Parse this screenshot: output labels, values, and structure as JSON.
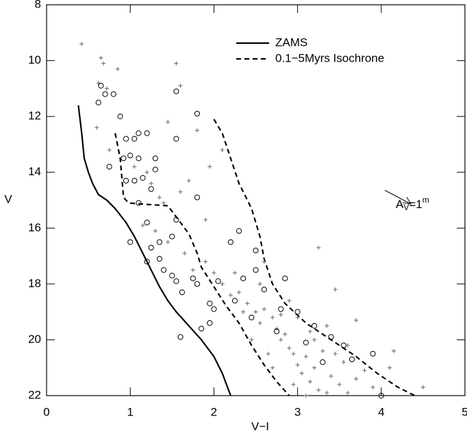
{
  "chart_data": {
    "type": "scatter",
    "x_label": "V−I",
    "y_label": "V",
    "xlim": [
      0,
      5
    ],
    "xticks": [
      0,
      1,
      2,
      3,
      4,
      5
    ],
    "ylim": [
      8,
      22
    ],
    "yticks": [
      8,
      10,
      12,
      14,
      16,
      18,
      20,
      22
    ],
    "y_inverted": true,
    "annotation": {
      "parts": [
        "A",
        "V",
        "=1",
        "m"
      ]
    },
    "series": [
      {
        "name": "ZAMS",
        "kind": "line",
        "dash": false,
        "color": "#000000",
        "x": [
          0.38,
          0.42,
          0.45,
          0.5,
          0.55,
          0.62,
          0.72,
          0.82,
          0.95,
          1.05,
          1.15,
          1.25,
          1.35,
          1.45,
          1.55,
          1.7,
          1.85,
          2.0,
          2.1,
          2.2
        ],
        "y": [
          11.6,
          12.6,
          13.5,
          14.0,
          14.4,
          14.8,
          15.0,
          15.3,
          15.8,
          16.3,
          16.9,
          17.5,
          18.1,
          18.6,
          19.0,
          19.5,
          20.0,
          20.6,
          21.2,
          22.0
        ]
      },
      {
        "name": "0.1−5Myrs Isochrone",
        "kind": "line",
        "dash": true,
        "color": "#000000",
        "x": [
          0.82,
          0.88,
          0.9,
          0.92,
          0.98,
          1.2,
          1.45,
          1.55,
          1.7,
          1.8,
          1.85,
          2.0,
          2.15,
          2.3,
          2.45,
          2.6,
          2.75,
          2.9
        ],
        "y": [
          12.6,
          13.5,
          14.2,
          14.9,
          15.1,
          15.15,
          15.2,
          15.6,
          16.2,
          16.9,
          17.4,
          18.1,
          18.8,
          19.4,
          20.2,
          20.9,
          21.5,
          22.0
        ]
      },
      {
        "kind": "line",
        "dash": true,
        "color": "#000000",
        "x": [
          2.0,
          2.1,
          2.2,
          2.3,
          2.45,
          2.55,
          2.6,
          2.7,
          2.85,
          3.1,
          3.4,
          3.7,
          3.95,
          4.2,
          4.4
        ],
        "y": [
          12.1,
          12.6,
          13.5,
          14.4,
          15.3,
          16.3,
          17.1,
          18.0,
          18.7,
          19.4,
          20.0,
          20.6,
          21.2,
          21.7,
          22.0
        ]
      },
      {
        "kind": "points",
        "marker": "cross",
        "color": "#777777",
        "x": [
          0.42,
          0.65,
          0.68,
          0.85,
          0.62,
          0.72,
          1.55,
          1.6,
          0.6,
          1.45,
          1.8,
          0.75,
          1.05,
          1.2,
          1.25,
          1.35,
          1.4,
          1.6,
          1.7,
          1.95,
          2.1,
          1.9,
          1.15,
          1.3,
          1.45,
          1.65,
          1.75,
          1.9,
          2.0,
          2.1,
          2.2,
          2.3,
          2.4,
          2.5,
          2.55,
          2.6,
          2.7,
          2.75,
          2.8,
          2.85,
          2.9,
          2.95,
          3.0,
          3.05,
          3.1,
          3.15,
          3.2,
          3.25,
          3.3,
          3.35,
          3.4,
          3.5,
          3.55,
          3.6,
          3.7,
          3.8,
          3.9,
          4.1,
          4.15,
          4.5,
          3.25,
          3.45,
          3.7,
          2.6,
          2.9,
          3.15,
          2.45,
          2.65,
          2.7,
          2.95,
          3.1,
          2.35,
          2.8,
          3.2,
          3.45,
          2.55,
          2.25,
          3.0,
          3.35,
          3.6
        ],
        "y": [
          9.4,
          9.9,
          10.1,
          10.3,
          10.8,
          11.0,
          10.1,
          10.9,
          12.4,
          12.2,
          12.5,
          13.2,
          13.8,
          14.0,
          14.4,
          14.9,
          15.1,
          14.7,
          14.3,
          13.8,
          13.2,
          15.7,
          15.9,
          16.1,
          16.5,
          16.9,
          17.5,
          17.2,
          17.6,
          18.0,
          18.4,
          18.3,
          18.7,
          19.0,
          19.4,
          18.9,
          19.2,
          19.6,
          20.0,
          19.8,
          20.3,
          20.5,
          20.9,
          21.2,
          20.6,
          21.5,
          21.0,
          21.8,
          20.4,
          21.9,
          21.3,
          21.6,
          20.8,
          21.9,
          21.4,
          21.1,
          21.7,
          21.0,
          20.4,
          21.7,
          16.7,
          18.2,
          19.3,
          17.2,
          18.6,
          19.7,
          20.0,
          20.5,
          21.0,
          21.6,
          22.0,
          19.0,
          19.1,
          20.0,
          20.5,
          18.0,
          17.6,
          19.2,
          19.5,
          20.2
        ]
      },
      {
        "kind": "points",
        "marker": "circle",
        "color": "#000000",
        "x": [
          0.62,
          0.65,
          0.7,
          0.8,
          0.88,
          0.95,
          1.05,
          1.1,
          1.2,
          1.55,
          1.8,
          1.55,
          0.92,
          1.0,
          1.1,
          1.3,
          0.75,
          0.95,
          1.05,
          1.15,
          1.3,
          1.25,
          1.1,
          1.2,
          1.55,
          1.8,
          1.5,
          1.25,
          1.35,
          1.0,
          1.2,
          1.35,
          1.4,
          1.5,
          1.55,
          1.62,
          1.8,
          1.75,
          1.95,
          2.0,
          1.95,
          1.85,
          1.6,
          2.05,
          2.25,
          2.35,
          2.5,
          2.6,
          2.8,
          3.0,
          3.2,
          2.3,
          2.5,
          2.2,
          2.85,
          3.4,
          3.55,
          3.9,
          3.65,
          4.0,
          3.1,
          2.75,
          2.45,
          3.3
        ],
        "y": [
          11.5,
          10.9,
          11.2,
          11.2,
          12.0,
          12.8,
          12.8,
          12.6,
          12.6,
          12.8,
          11.9,
          11.1,
          13.5,
          13.4,
          13.5,
          13.5,
          13.8,
          14.3,
          14.3,
          14.2,
          13.9,
          14.6,
          15.1,
          15.8,
          15.7,
          14.9,
          16.3,
          16.7,
          16.5,
          16.5,
          17.2,
          17.1,
          17.5,
          17.7,
          17.9,
          18.3,
          18.0,
          17.8,
          18.7,
          18.9,
          19.4,
          19.6,
          19.9,
          17.9,
          18.6,
          17.8,
          17.5,
          18.2,
          18.9,
          19.0,
          19.5,
          16.1,
          16.8,
          16.5,
          17.8,
          19.9,
          20.2,
          20.5,
          20.7,
          22.0,
          20.1,
          19.7,
          19.2,
          20.8
        ]
      }
    ]
  }
}
